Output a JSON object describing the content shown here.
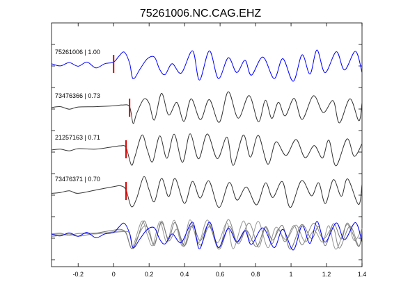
{
  "chart_data": {
    "type": "line",
    "title": "75261006.NC.CAG.EHZ",
    "xlabel": "",
    "ylabel": "",
    "xlim": [
      -0.35,
      1.4
    ],
    "x_ticks": [
      "-0.2",
      "0",
      "0.2",
      "0.4",
      "0.6",
      "0.8",
      "1",
      "1.2",
      "1.4"
    ],
    "x_tick_values": [
      -0.2,
      0,
      0.2,
      0.4,
      0.6,
      0.8,
      1.0,
      1.2,
      1.4
    ],
    "grid": false,
    "traces": [
      {
        "label": "75261006 | 1.00",
        "event_id": "75261006",
        "correlation": 1.0,
        "color": "#0000ff",
        "pick_time": 0.0,
        "seed": 1,
        "onset_points": [
          [
            -0.35,
            0.05
          ],
          [
            -0.3,
            -0.08
          ],
          [
            -0.25,
            0.12
          ],
          [
            -0.2,
            -0.1
          ],
          [
            -0.15,
            0.15
          ],
          [
            -0.1,
            -0.2
          ],
          [
            -0.05,
            0.05
          ],
          [
            0.0,
            0.15
          ],
          [
            0.03,
            0.5
          ],
          [
            0.06,
            0.75
          ],
          [
            0.09,
            0.1
          ],
          [
            0.11,
            -0.85
          ],
          [
            0.15,
            -0.25
          ],
          [
            0.19,
            0.35
          ],
          [
            0.23,
            0.45
          ],
          [
            0.26,
            -0.3
          ],
          [
            0.29,
            -0.6
          ],
          [
            0.33,
            0.05
          ]
        ]
      },
      {
        "label": "73476366 | 0.73",
        "event_id": "73476366",
        "correlation": 0.73,
        "color": "#333333",
        "pick_time": 0.09,
        "seed": 2,
        "onset_points": [
          [
            -0.35,
            0.05
          ],
          [
            -0.3,
            0.1
          ],
          [
            -0.25,
            -0.05
          ],
          [
            -0.2,
            0.08
          ],
          [
            -0.1,
            0.1
          ],
          [
            0.0,
            0.15
          ],
          [
            0.05,
            0.2
          ],
          [
            0.09,
            0.1
          ],
          [
            0.11,
            -0.9
          ],
          [
            0.13,
            -0.3
          ],
          [
            0.17,
            0.55
          ],
          [
            0.2,
            0.3
          ],
          [
            0.23,
            -0.7
          ],
          [
            0.27,
            0.9
          ],
          [
            0.31,
            -0.4
          ]
        ]
      },
      {
        "label": "21257163 | 0.71",
        "event_id": "21257163",
        "correlation": 0.71,
        "color": "#333333",
        "pick_time": 0.07,
        "seed": 3,
        "onset_points": [
          [
            -0.35,
            0.0
          ],
          [
            -0.3,
            0.05
          ],
          [
            -0.25,
            -0.05
          ],
          [
            -0.2,
            0.08
          ],
          [
            -0.1,
            0.05
          ],
          [
            0.0,
            0.2
          ],
          [
            0.04,
            0.25
          ],
          [
            0.07,
            0.15
          ],
          [
            0.1,
            -0.9
          ],
          [
            0.12,
            -0.4
          ],
          [
            0.16,
            0.9
          ],
          [
            0.19,
            0.0
          ],
          [
            0.22,
            -0.7
          ],
          [
            0.26,
            0.85
          ],
          [
            0.3,
            -0.5
          ]
        ]
      },
      {
        "label": "73476371 | 0.70",
        "event_id": "73476371",
        "correlation": 0.7,
        "color": "#333333",
        "pick_time": 0.07,
        "seed": 4,
        "onset_points": [
          [
            -0.35,
            -0.1
          ],
          [
            -0.3,
            -0.05
          ],
          [
            -0.25,
            0.05
          ],
          [
            -0.2,
            -0.1
          ],
          [
            -0.1,
            0.1
          ],
          [
            0.0,
            0.3
          ],
          [
            0.04,
            0.35
          ],
          [
            0.07,
            0.1
          ],
          [
            0.1,
            -0.9
          ],
          [
            0.13,
            -0.4
          ],
          [
            0.17,
            0.9
          ],
          [
            0.2,
            0.1
          ],
          [
            0.23,
            -0.6
          ],
          [
            0.27,
            0.8
          ],
          [
            0.31,
            -0.3
          ]
        ]
      }
    ],
    "stack": {
      "note_free": true,
      "colors": [
        "#888888",
        "#999999",
        "#777777",
        "#0000ff"
      ]
    },
    "pick_color": "#dd0000"
  }
}
